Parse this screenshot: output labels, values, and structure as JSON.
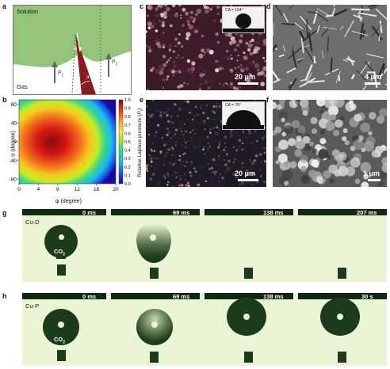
{
  "figure": {
    "panel_labels": {
      "a": "a",
      "b": "b",
      "c": "c",
      "d": "d",
      "e": "e",
      "f": "f",
      "g": "g",
      "h": "h"
    }
  },
  "panel_a": {
    "solution_label": "Solution",
    "gas_label": "Gas",
    "p1_main": "P",
    "p1_sub": "1",
    "p2_main": "P",
    "p2_sub": "2",
    "phi_symbol": "φ",
    "alpha_symbol": "α",
    "colors": {
      "solution": "#94c47a",
      "gas": "#ffffff",
      "solid": "#8b1a1a"
    }
  },
  "panel_b": {
    "ylabel": "α (degree)",
    "xlabel": "φ (degree)",
    "colorbar_label_main": "Relative Laplace pressure (",
    "colorbar_label_sym": "P",
    "colorbar_label_sub": "r",
    "colorbar_label_end": ")"
  },
  "panel_c": {
    "scale_label": "20 μm",
    "ca_label": "CA = 154°"
  },
  "panel_d": {
    "scale_label": "4 μm"
  },
  "panel_e": {
    "scale_label": "20 μm",
    "ca_label": "CA = 79°"
  },
  "panel_f": {
    "scale_label": "1 μm"
  },
  "panel_g": {
    "sample": "Cu-D",
    "gas": "CO",
    "gas_sub": "2",
    "times": [
      "0 ms",
      "69 ms",
      "138 ms",
      "207 ms"
    ]
  },
  "panel_h": {
    "sample": "Cu-P",
    "gas": "CO",
    "gas_sub": "2",
    "times": [
      "0 ms",
      "69 ms",
      "138 ms",
      "30 s"
    ]
  },
  "chart_data": {
    "type": "heatmap",
    "xlabel": "φ (degree)",
    "ylabel": "α (degree)",
    "xlim": [
      0,
      20
    ],
    "ylim": [
      -90,
      90
    ],
    "x_ticks": [
      0,
      4,
      8,
      12,
      16,
      20
    ],
    "y_ticks": [
      -80,
      -40,
      0,
      40,
      80
    ],
    "colorbar_label": "Relative Laplace pressure (Pr)",
    "colorbar_range": [
      0.0,
      1.0
    ],
    "colorbar_ticks": [
      "0.0",
      "0.1",
      "0.2",
      "0.3",
      "0.4",
      "0.5",
      "0.6",
      "0.7",
      "0.8",
      "0.9",
      "1.0"
    ],
    "peak": {
      "phi": 6,
      "alpha": 0,
      "value": 1.0
    }
  }
}
